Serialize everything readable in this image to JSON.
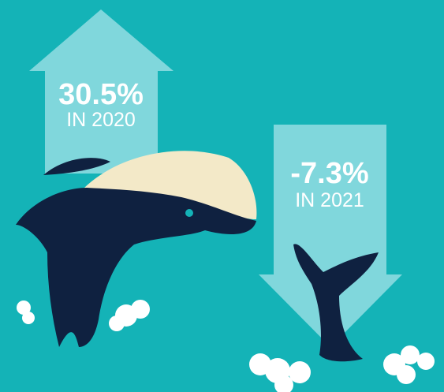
{
  "stats": [
    {
      "value": "30.5%",
      "label": "IN 2020"
    },
    {
      "value": "-7.3%",
      "label": "IN 2021"
    }
  ]
}
